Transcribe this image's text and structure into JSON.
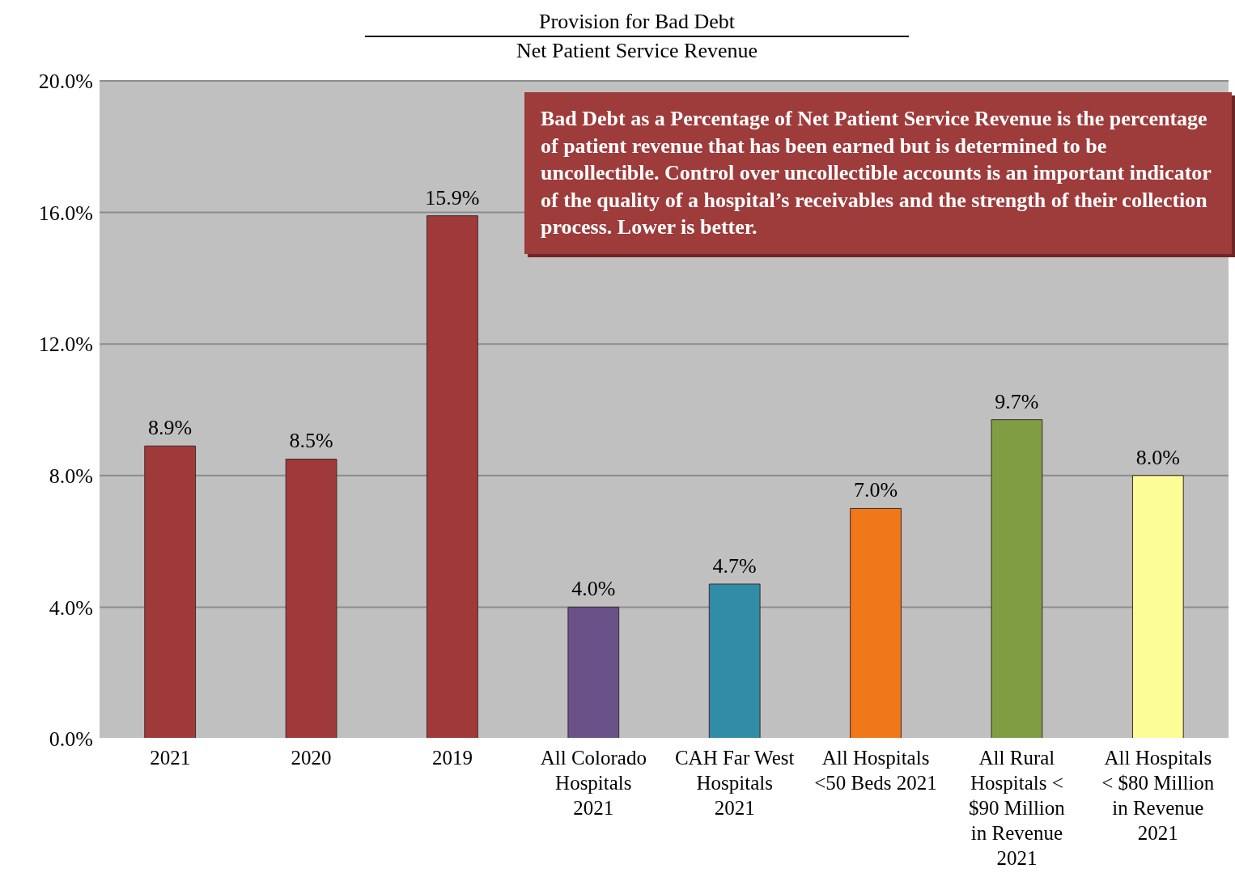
{
  "chart_data": {
    "type": "bar",
    "title": "Provision for Bad Debt",
    "subtitle": "Net Patient Service Revenue",
    "categories": [
      "2021",
      "2020",
      "2019",
      "All Colorado Hospitals 2021",
      "CAH Far West Hospitals 2021",
      "All Hospitals <50 Beds 2021",
      "All Rural Hospitals < $90 Million in Revenue 2021",
      "All Hospitals < $80 Million in Revenue 2021"
    ],
    "values": [
      8.9,
      8.5,
      15.9,
      4.0,
      4.7,
      7.0,
      9.7,
      8.0
    ],
    "value_labels": [
      "8.9%",
      "8.5%",
      "15.9%",
      "4.0%",
      "4.7%",
      "7.0%",
      "9.7%",
      "8.0%"
    ],
    "colors": [
      "#a03a3a",
      "#a03a3a",
      "#a03a3a",
      "#6a5188",
      "#318ca8",
      "#f07818",
      "#7f9e44",
      "#fdfd98"
    ],
    "ylim": [
      0,
      20
    ],
    "yticks": [
      {
        "value": 0,
        "label": "0.0%"
      },
      {
        "value": 4,
        "label": "4.0%"
      },
      {
        "value": 8,
        "label": "8.0%"
      },
      {
        "value": 12,
        "label": "12.0%"
      },
      {
        "value": 16,
        "label": "16.0%"
      },
      {
        "value": 20,
        "label": "20.0%"
      }
    ],
    "grid": "y",
    "legend": false,
    "annotations": [
      "Bad Debt as a Percentage of Net Patient Service Revenue is the percentage of patient revenue that has been earned but is determined to be uncollectible. Control over uncollectible accounts is an important indicator of the quality of a hospital’s receivables and the strength of their collection process. Lower is better."
    ]
  }
}
